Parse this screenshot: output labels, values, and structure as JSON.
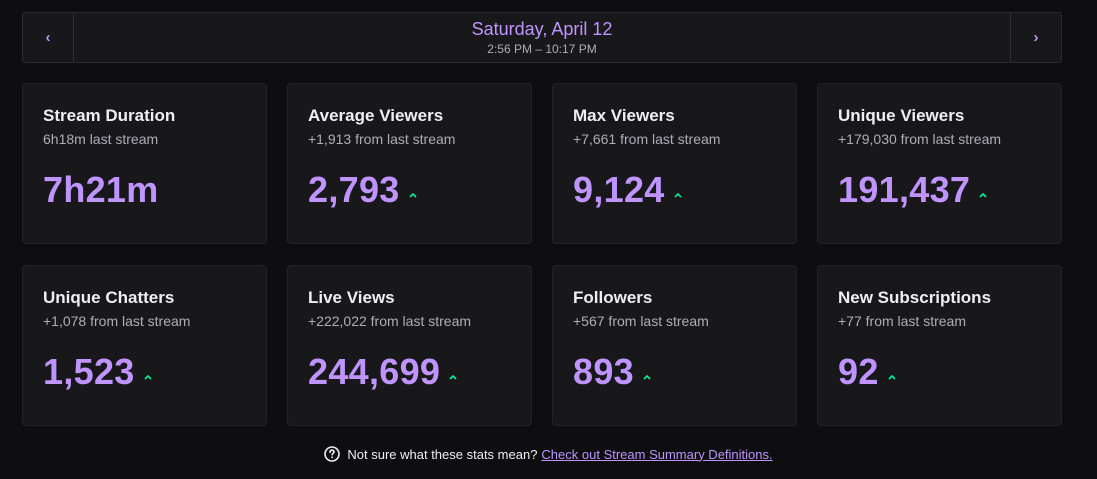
{
  "header": {
    "prev_label": "‹",
    "next_label": "›",
    "date": "Saturday, April 12",
    "time_range": "2:56 PM – 10:17 PM"
  },
  "cards": [
    {
      "title": "Stream Duration",
      "sub": "6h18m last stream",
      "value": "7h21m",
      "trend": "none"
    },
    {
      "title": "Average Viewers",
      "sub": "+1,913 from last stream",
      "value": "2,793",
      "trend": "up"
    },
    {
      "title": "Max Viewers",
      "sub": "+7,661 from last stream",
      "value": "9,124",
      "trend": "up"
    },
    {
      "title": "Unique Viewers",
      "sub": "+179,030 from last stream",
      "value": "191,437",
      "trend": "up"
    },
    {
      "title": "Unique Chatters",
      "sub": "+1,078 from last stream",
      "value": "1,523",
      "trend": "up"
    },
    {
      "title": "Live Views",
      "sub": "+222,022 from last stream",
      "value": "244,699",
      "trend": "up"
    },
    {
      "title": "Followers",
      "sub": "+567 from last stream",
      "value": "893",
      "trend": "up"
    },
    {
      "title": "New Subscriptions",
      "sub": "+77 from last stream",
      "value": "92",
      "trend": "up"
    }
  ],
  "footer": {
    "question": "Not sure what these stats mean?",
    "link": "Check out Stream Summary Definitions."
  },
  "colors": {
    "accent": "#bf94ff",
    "trend_up": "#00f593",
    "card_bg": "#18181b",
    "page_bg": "#0e0e10"
  },
  "icons": {
    "prev": "chevron-left-icon",
    "next": "chevron-right-icon",
    "trend": "trend-up-icon",
    "help": "question-circle-icon"
  }
}
